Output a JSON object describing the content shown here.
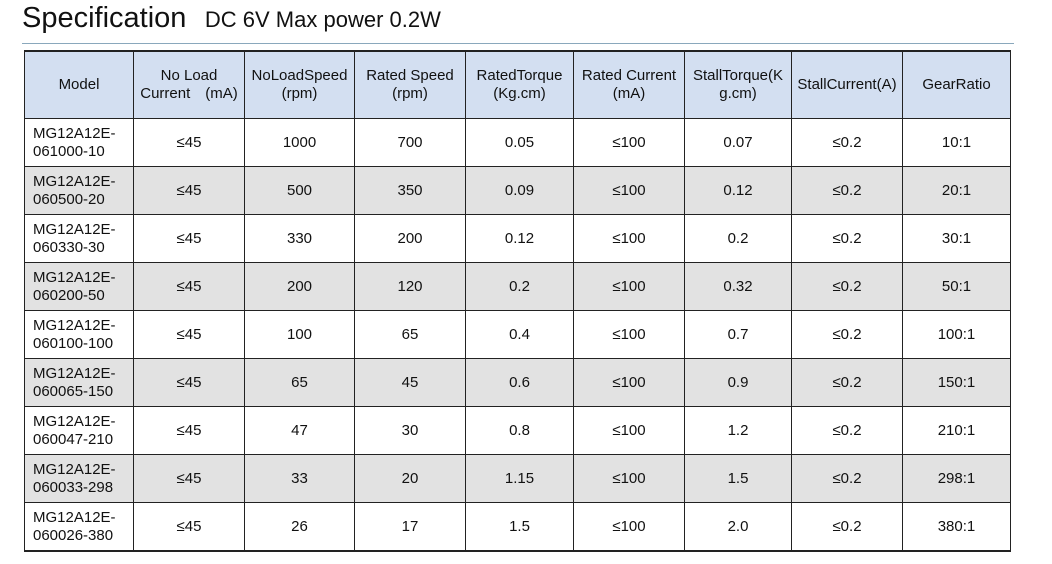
{
  "title": {
    "main": "Specification",
    "sub": "DC 6V Max power 0.2W"
  },
  "table": {
    "headers": [
      "Model",
      "No Load\nCurrent　(mA)",
      "NoLoadSpeed\n(rpm)",
      "Rated Speed\n(rpm)",
      "RatedTorque\n(Kg.cm)",
      "Rated Current\n(mA)",
      "StallTorque(K\ng.cm)",
      "StallCurrent(A)",
      "GearRatio"
    ],
    "rows": [
      [
        "MG12A12E-\n061000-10",
        "≤45",
        "1000",
        "700",
        "0.05",
        "≤100",
        "0.07",
        "≤0.2",
        "10:1"
      ],
      [
        "MG12A12E-\n060500-20",
        "≤45",
        "500",
        "350",
        "0.09",
        "≤100",
        "0.12",
        "≤0.2",
        "20:1"
      ],
      [
        "MG12A12E-\n060330-30",
        "≤45",
        "330",
        "200",
        "0.12",
        "≤100",
        "0.2",
        "≤0.2",
        "30:1"
      ],
      [
        "MG12A12E-\n060200-50",
        "≤45",
        "200",
        "120",
        "0.2",
        "≤100",
        "0.32",
        "≤0.2",
        "50:1"
      ],
      [
        "MG12A12E-\n060100-100",
        "≤45",
        "100",
        "65",
        "0.4",
        "≤100",
        "0.7",
        "≤0.2",
        "100:1"
      ],
      [
        "MG12A12E-\n060065-150",
        "≤45",
        "65",
        "45",
        "0.6",
        "≤100",
        "0.9",
        "≤0.2",
        "150:1"
      ],
      [
        "MG12A12E-\n060047-210",
        "≤45",
        "47",
        "30",
        "0.8",
        "≤100",
        "1.2",
        "≤0.2",
        "210:1"
      ],
      [
        "MG12A12E-\n060033-298",
        "≤45",
        "33",
        "20",
        "1.15",
        "≤100",
        "1.5",
        "≤0.2",
        "298:1"
      ],
      [
        "MG12A12E-\n060026-380",
        "≤45",
        "26",
        "17",
        "1.5",
        "≤100",
        "2.0",
        "≤0.2",
        "380:1"
      ]
    ]
  }
}
